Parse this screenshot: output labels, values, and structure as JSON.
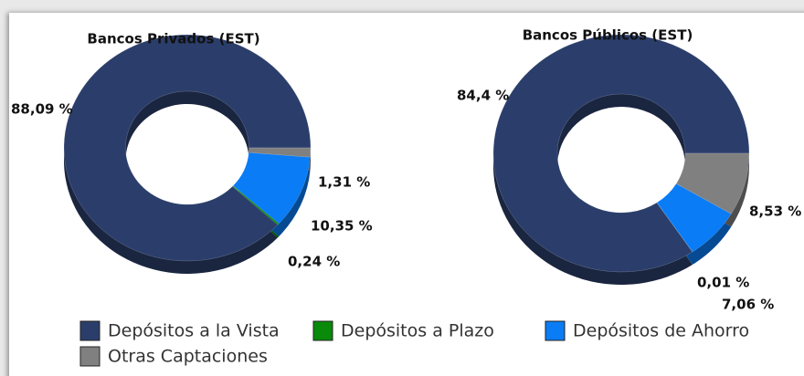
{
  "chart_data": [
    {
      "type": "pie",
      "title": "Bancos Privados (EST)",
      "categories": [
        "Depósitos a la Vista",
        "Depósitos a Plazo",
        "Depósitos de Ahorro",
        "Otras Captaciones"
      ],
      "values": [
        88.09,
        0.24,
        10.35,
        1.31
      ],
      "value_labels": [
        "88,09 %",
        "0,24 %",
        "10,35 %",
        "1,31 %"
      ],
      "colors": [
        "#2b3e6b",
        "#0a8a0a",
        "#0a7cf5",
        "#808080"
      ]
    },
    {
      "type": "pie",
      "title": "Bancos Públicos (EST)",
      "categories": [
        "Depósitos a la Vista",
        "Depósitos a Plazo",
        "Depósitos de Ahorro",
        "Otras Captaciones"
      ],
      "values": [
        84.4,
        0.01,
        7.06,
        8.53
      ],
      "value_labels": [
        "84,4 %",
        "0,01 %",
        "7,06 %",
        "8,53 %"
      ],
      "colors": [
        "#2b3e6b",
        "#0a8a0a",
        "#0a7cf5",
        "#808080"
      ]
    }
  ]
}
